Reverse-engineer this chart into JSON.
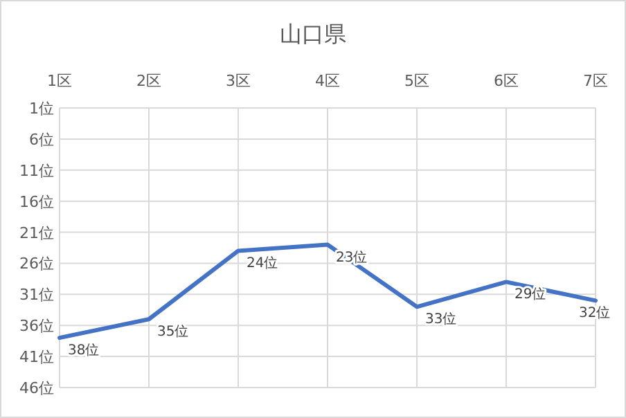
{
  "chart_data": {
    "type": "line",
    "title": "山口県",
    "categories": [
      "1区",
      "2区",
      "3区",
      "4区",
      "5区",
      "6区",
      "7区"
    ],
    "series": [
      {
        "color": "#4472c4",
        "values": [
          38,
          35,
          24,
          23,
          33,
          29,
          32
        ],
        "value_labels": [
          "38位",
          "35位",
          "24位",
          "23位",
          "33位",
          "29位",
          "32位"
        ]
      }
    ],
    "ylim": [
      46,
      1
    ],
    "yticks": [
      {
        "value": 1,
        "label": "1位"
      },
      {
        "value": 6,
        "label": "6位"
      },
      {
        "value": 11,
        "label": "11位"
      },
      {
        "value": 16,
        "label": "16位"
      },
      {
        "value": 21,
        "label": "21位"
      },
      {
        "value": 26,
        "label": "26位"
      },
      {
        "value": 31,
        "label": "31位"
      },
      {
        "value": 36,
        "label": "36位"
      },
      {
        "value": 41,
        "label": "41位"
      },
      {
        "value": 46,
        "label": "46位"
      }
    ],
    "grid": true,
    "marker": "none",
    "line_style": "solid"
  }
}
